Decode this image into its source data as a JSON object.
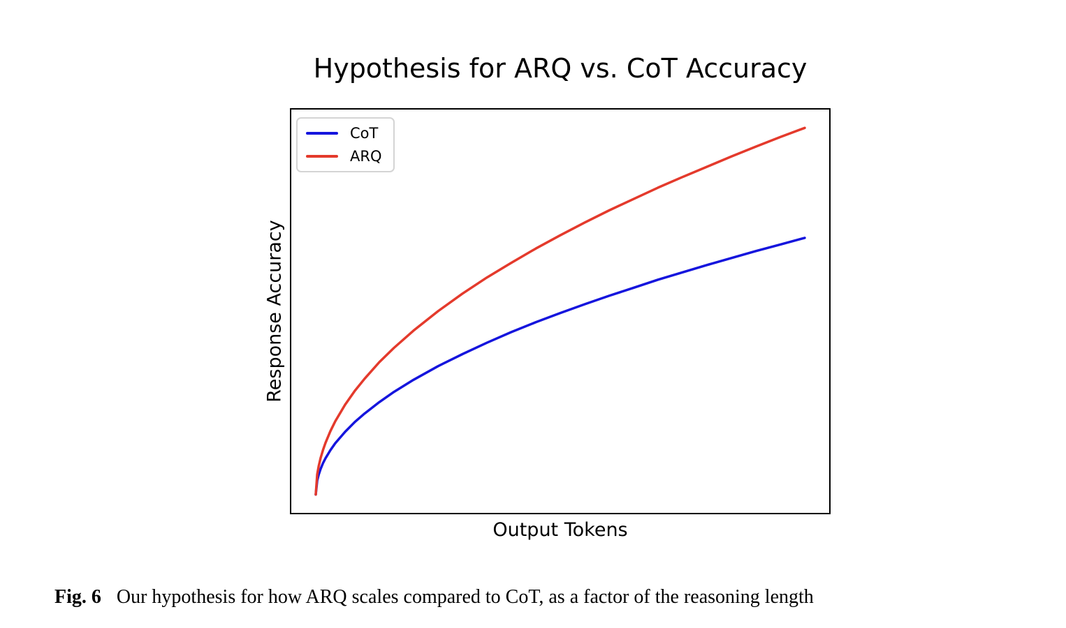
{
  "caption": {
    "label": "Fig. 6",
    "text": "Our hypothesis for how ARQ scales compared to CoT, as a factor of the reasoning length"
  },
  "colors": {
    "cot_line": "#1515dd",
    "arq_line": "#e43a2c",
    "frame": "#000000",
    "legend_border": "#d4d4d4",
    "background": "#ffffff"
  },
  "chart_data": {
    "type": "line",
    "title": "Hypothesis for ARQ vs. CoT Accuracy",
    "xlabel": "Output Tokens",
    "ylabel": "Response Accuracy",
    "xlim": [
      0,
      1
    ],
    "ylim": [
      0,
      1
    ],
    "grid": false,
    "ticks_visible": false,
    "tick_labels": [],
    "legend_position": "upper left",
    "axes_margin_fraction": 0.0455,
    "x": [
      0,
      0.003,
      0.006,
      0.01,
      0.015,
      0.02,
      0.03,
      0.04,
      0.06,
      0.08,
      0.1,
      0.13,
      0.16,
      0.2,
      0.25,
      0.3,
      0.35,
      0.4,
      0.45,
      0.5,
      0.55,
      0.6,
      0.65,
      0.7,
      0.75,
      0.8,
      0.85,
      0.9,
      0.95,
      1
    ],
    "series": [
      {
        "name": "CoT",
        "color": "#1515dd",
        "shape": "y = 0.7 * sqrt(x)",
        "y": [
          0,
          0.038,
          0.054,
          0.07,
          0.086,
          0.099,
          0.121,
          0.14,
          0.171,
          0.198,
          0.221,
          0.252,
          0.28,
          0.313,
          0.35,
          0.383,
          0.414,
          0.443,
          0.47,
          0.495,
          0.519,
          0.542,
          0.564,
          0.586,
          0.606,
          0.626,
          0.645,
          0.664,
          0.682,
          0.7
        ]
      },
      {
        "name": "ARQ",
        "color": "#e43a2c",
        "shape": "y = sqrt(x)",
        "y": [
          0,
          0.055,
          0.077,
          0.1,
          0.122,
          0.141,
          0.173,
          0.2,
          0.245,
          0.283,
          0.316,
          0.361,
          0.4,
          0.447,
          0.5,
          0.548,
          0.592,
          0.632,
          0.671,
          0.707,
          0.742,
          0.775,
          0.806,
          0.837,
          0.866,
          0.894,
          0.922,
          0.949,
          0.975,
          1
        ]
      }
    ]
  }
}
